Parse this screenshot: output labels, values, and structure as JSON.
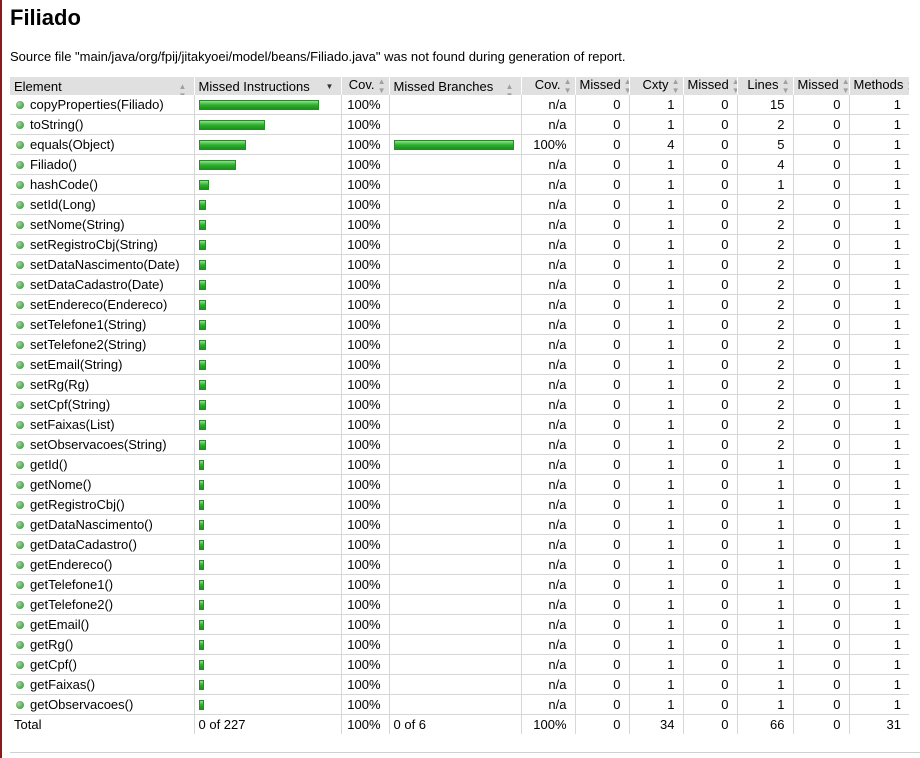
{
  "title": "Filiado",
  "source_note": "Source file \"main/java/org/fpij/jitakyoei/model/beans/Filiado.java\" was not found during generation of report.",
  "icons": {
    "method": "green-dot-icon",
    "sort": "sort-arrows-icon",
    "sort_desc": "sort-desc-icon"
  },
  "colors": {
    "bar": "#2cb02c",
    "header_bg": "#e0e0e0"
  },
  "columns": [
    "Element",
    "Missed Instructions",
    "Cov.",
    "Missed Branches",
    "Cov.",
    "Missed",
    "Cxty",
    "Missed",
    "Lines",
    "Missed",
    "Methods"
  ],
  "rows": [
    {
      "name": "copyProperties(Filiado)",
      "instr_cov": 1.0,
      "cov": "100%",
      "branch_cov": null,
      "bcov": "n/a",
      "m_cxty": "0",
      "cxty": "1",
      "m_lines": "0",
      "lines": "15",
      "m_methods": "0",
      "methods": "1"
    },
    {
      "name": "toString()",
      "instr_cov": 0.55,
      "cov": "100%",
      "branch_cov": null,
      "bcov": "n/a",
      "m_cxty": "0",
      "cxty": "1",
      "m_lines": "0",
      "lines": "2",
      "m_methods": "0",
      "methods": "1"
    },
    {
      "name": "equals(Object)",
      "instr_cov": 0.39,
      "cov": "100%",
      "branch_cov": 1.0,
      "bcov": "100%",
      "m_cxty": "0",
      "cxty": "4",
      "m_lines": "0",
      "lines": "5",
      "m_methods": "0",
      "methods": "1"
    },
    {
      "name": "Filiado()",
      "instr_cov": 0.31,
      "cov": "100%",
      "branch_cov": null,
      "bcov": "n/a",
      "m_cxty": "0",
      "cxty": "1",
      "m_lines": "0",
      "lines": "4",
      "m_methods": "0",
      "methods": "1"
    },
    {
      "name": "hashCode()",
      "instr_cov": 0.08,
      "cov": "100%",
      "branch_cov": null,
      "bcov": "n/a",
      "m_cxty": "0",
      "cxty": "1",
      "m_lines": "0",
      "lines": "1",
      "m_methods": "0",
      "methods": "1"
    },
    {
      "name": "setId(Long)",
      "instr_cov": 0.06,
      "cov": "100%",
      "branch_cov": null,
      "bcov": "n/a",
      "m_cxty": "0",
      "cxty": "1",
      "m_lines": "0",
      "lines": "2",
      "m_methods": "0",
      "methods": "1"
    },
    {
      "name": "setNome(String)",
      "instr_cov": 0.06,
      "cov": "100%",
      "branch_cov": null,
      "bcov": "n/a",
      "m_cxty": "0",
      "cxty": "1",
      "m_lines": "0",
      "lines": "2",
      "m_methods": "0",
      "methods": "1"
    },
    {
      "name": "setRegistroCbj(String)",
      "instr_cov": 0.06,
      "cov": "100%",
      "branch_cov": null,
      "bcov": "n/a",
      "m_cxty": "0",
      "cxty": "1",
      "m_lines": "0",
      "lines": "2",
      "m_methods": "0",
      "methods": "1"
    },
    {
      "name": "setDataNascimento(Date)",
      "instr_cov": 0.06,
      "cov": "100%",
      "branch_cov": null,
      "bcov": "n/a",
      "m_cxty": "0",
      "cxty": "1",
      "m_lines": "0",
      "lines": "2",
      "m_methods": "0",
      "methods": "1"
    },
    {
      "name": "setDataCadastro(Date)",
      "instr_cov": 0.06,
      "cov": "100%",
      "branch_cov": null,
      "bcov": "n/a",
      "m_cxty": "0",
      "cxty": "1",
      "m_lines": "0",
      "lines": "2",
      "m_methods": "0",
      "methods": "1"
    },
    {
      "name": "setEndereco(Endereco)",
      "instr_cov": 0.06,
      "cov": "100%",
      "branch_cov": null,
      "bcov": "n/a",
      "m_cxty": "0",
      "cxty": "1",
      "m_lines": "0",
      "lines": "2",
      "m_methods": "0",
      "methods": "1"
    },
    {
      "name": "setTelefone1(String)",
      "instr_cov": 0.06,
      "cov": "100%",
      "branch_cov": null,
      "bcov": "n/a",
      "m_cxty": "0",
      "cxty": "1",
      "m_lines": "0",
      "lines": "2",
      "m_methods": "0",
      "methods": "1"
    },
    {
      "name": "setTelefone2(String)",
      "instr_cov": 0.06,
      "cov": "100%",
      "branch_cov": null,
      "bcov": "n/a",
      "m_cxty": "0",
      "cxty": "1",
      "m_lines": "0",
      "lines": "2",
      "m_methods": "0",
      "methods": "1"
    },
    {
      "name": "setEmail(String)",
      "instr_cov": 0.06,
      "cov": "100%",
      "branch_cov": null,
      "bcov": "n/a",
      "m_cxty": "0",
      "cxty": "1",
      "m_lines": "0",
      "lines": "2",
      "m_methods": "0",
      "methods": "1"
    },
    {
      "name": "setRg(Rg)",
      "instr_cov": 0.06,
      "cov": "100%",
      "branch_cov": null,
      "bcov": "n/a",
      "m_cxty": "0",
      "cxty": "1",
      "m_lines": "0",
      "lines": "2",
      "m_methods": "0",
      "methods": "1"
    },
    {
      "name": "setCpf(String)",
      "instr_cov": 0.06,
      "cov": "100%",
      "branch_cov": null,
      "bcov": "n/a",
      "m_cxty": "0",
      "cxty": "1",
      "m_lines": "0",
      "lines": "2",
      "m_methods": "0",
      "methods": "1"
    },
    {
      "name": "setFaixas(List)",
      "instr_cov": 0.06,
      "cov": "100%",
      "branch_cov": null,
      "bcov": "n/a",
      "m_cxty": "0",
      "cxty": "1",
      "m_lines": "0",
      "lines": "2",
      "m_methods": "0",
      "methods": "1"
    },
    {
      "name": "setObservacoes(String)",
      "instr_cov": 0.06,
      "cov": "100%",
      "branch_cov": null,
      "bcov": "n/a",
      "m_cxty": "0",
      "cxty": "1",
      "m_lines": "0",
      "lines": "2",
      "m_methods": "0",
      "methods": "1"
    },
    {
      "name": "getId()",
      "instr_cov": 0.04,
      "cov": "100%",
      "branch_cov": null,
      "bcov": "n/a",
      "m_cxty": "0",
      "cxty": "1",
      "m_lines": "0",
      "lines": "1",
      "m_methods": "0",
      "methods": "1"
    },
    {
      "name": "getNome()",
      "instr_cov": 0.04,
      "cov": "100%",
      "branch_cov": null,
      "bcov": "n/a",
      "m_cxty": "0",
      "cxty": "1",
      "m_lines": "0",
      "lines": "1",
      "m_methods": "0",
      "methods": "1"
    },
    {
      "name": "getRegistroCbj()",
      "instr_cov": 0.04,
      "cov": "100%",
      "branch_cov": null,
      "bcov": "n/a",
      "m_cxty": "0",
      "cxty": "1",
      "m_lines": "0",
      "lines": "1",
      "m_methods": "0",
      "methods": "1"
    },
    {
      "name": "getDataNascimento()",
      "instr_cov": 0.04,
      "cov": "100%",
      "branch_cov": null,
      "bcov": "n/a",
      "m_cxty": "0",
      "cxty": "1",
      "m_lines": "0",
      "lines": "1",
      "m_methods": "0",
      "methods": "1"
    },
    {
      "name": "getDataCadastro()",
      "instr_cov": 0.04,
      "cov": "100%",
      "branch_cov": null,
      "bcov": "n/a",
      "m_cxty": "0",
      "cxty": "1",
      "m_lines": "0",
      "lines": "1",
      "m_methods": "0",
      "methods": "1"
    },
    {
      "name": "getEndereco()",
      "instr_cov": 0.04,
      "cov": "100%",
      "branch_cov": null,
      "bcov": "n/a",
      "m_cxty": "0",
      "cxty": "1",
      "m_lines": "0",
      "lines": "1",
      "m_methods": "0",
      "methods": "1"
    },
    {
      "name": "getTelefone1()",
      "instr_cov": 0.04,
      "cov": "100%",
      "branch_cov": null,
      "bcov": "n/a",
      "m_cxty": "0",
      "cxty": "1",
      "m_lines": "0",
      "lines": "1",
      "m_methods": "0",
      "methods": "1"
    },
    {
      "name": "getTelefone2()",
      "instr_cov": 0.04,
      "cov": "100%",
      "branch_cov": null,
      "bcov": "n/a",
      "m_cxty": "0",
      "cxty": "1",
      "m_lines": "0",
      "lines": "1",
      "m_methods": "0",
      "methods": "1"
    },
    {
      "name": "getEmail()",
      "instr_cov": 0.04,
      "cov": "100%",
      "branch_cov": null,
      "bcov": "n/a",
      "m_cxty": "0",
      "cxty": "1",
      "m_lines": "0",
      "lines": "1",
      "m_methods": "0",
      "methods": "1"
    },
    {
      "name": "getRg()",
      "instr_cov": 0.04,
      "cov": "100%",
      "branch_cov": null,
      "bcov": "n/a",
      "m_cxty": "0",
      "cxty": "1",
      "m_lines": "0",
      "lines": "1",
      "m_methods": "0",
      "methods": "1"
    },
    {
      "name": "getCpf()",
      "instr_cov": 0.04,
      "cov": "100%",
      "branch_cov": null,
      "bcov": "n/a",
      "m_cxty": "0",
      "cxty": "1",
      "m_lines": "0",
      "lines": "1",
      "m_methods": "0",
      "methods": "1"
    },
    {
      "name": "getFaixas()",
      "instr_cov": 0.04,
      "cov": "100%",
      "branch_cov": null,
      "bcov": "n/a",
      "m_cxty": "0",
      "cxty": "1",
      "m_lines": "0",
      "lines": "1",
      "m_methods": "0",
      "methods": "1"
    },
    {
      "name": "getObservacoes()",
      "instr_cov": 0.04,
      "cov": "100%",
      "branch_cov": null,
      "bcov": "n/a",
      "m_cxty": "0",
      "cxty": "1",
      "m_lines": "0",
      "lines": "1",
      "m_methods": "0",
      "methods": "1"
    }
  ],
  "total": {
    "label": "Total",
    "instr": "0 of 227",
    "cov": "100%",
    "branch": "0 of 6",
    "bcov": "100%",
    "m_cxty": "0",
    "cxty": "34",
    "m_lines": "0",
    "lines": "66",
    "m_methods": "0",
    "methods": "31"
  }
}
